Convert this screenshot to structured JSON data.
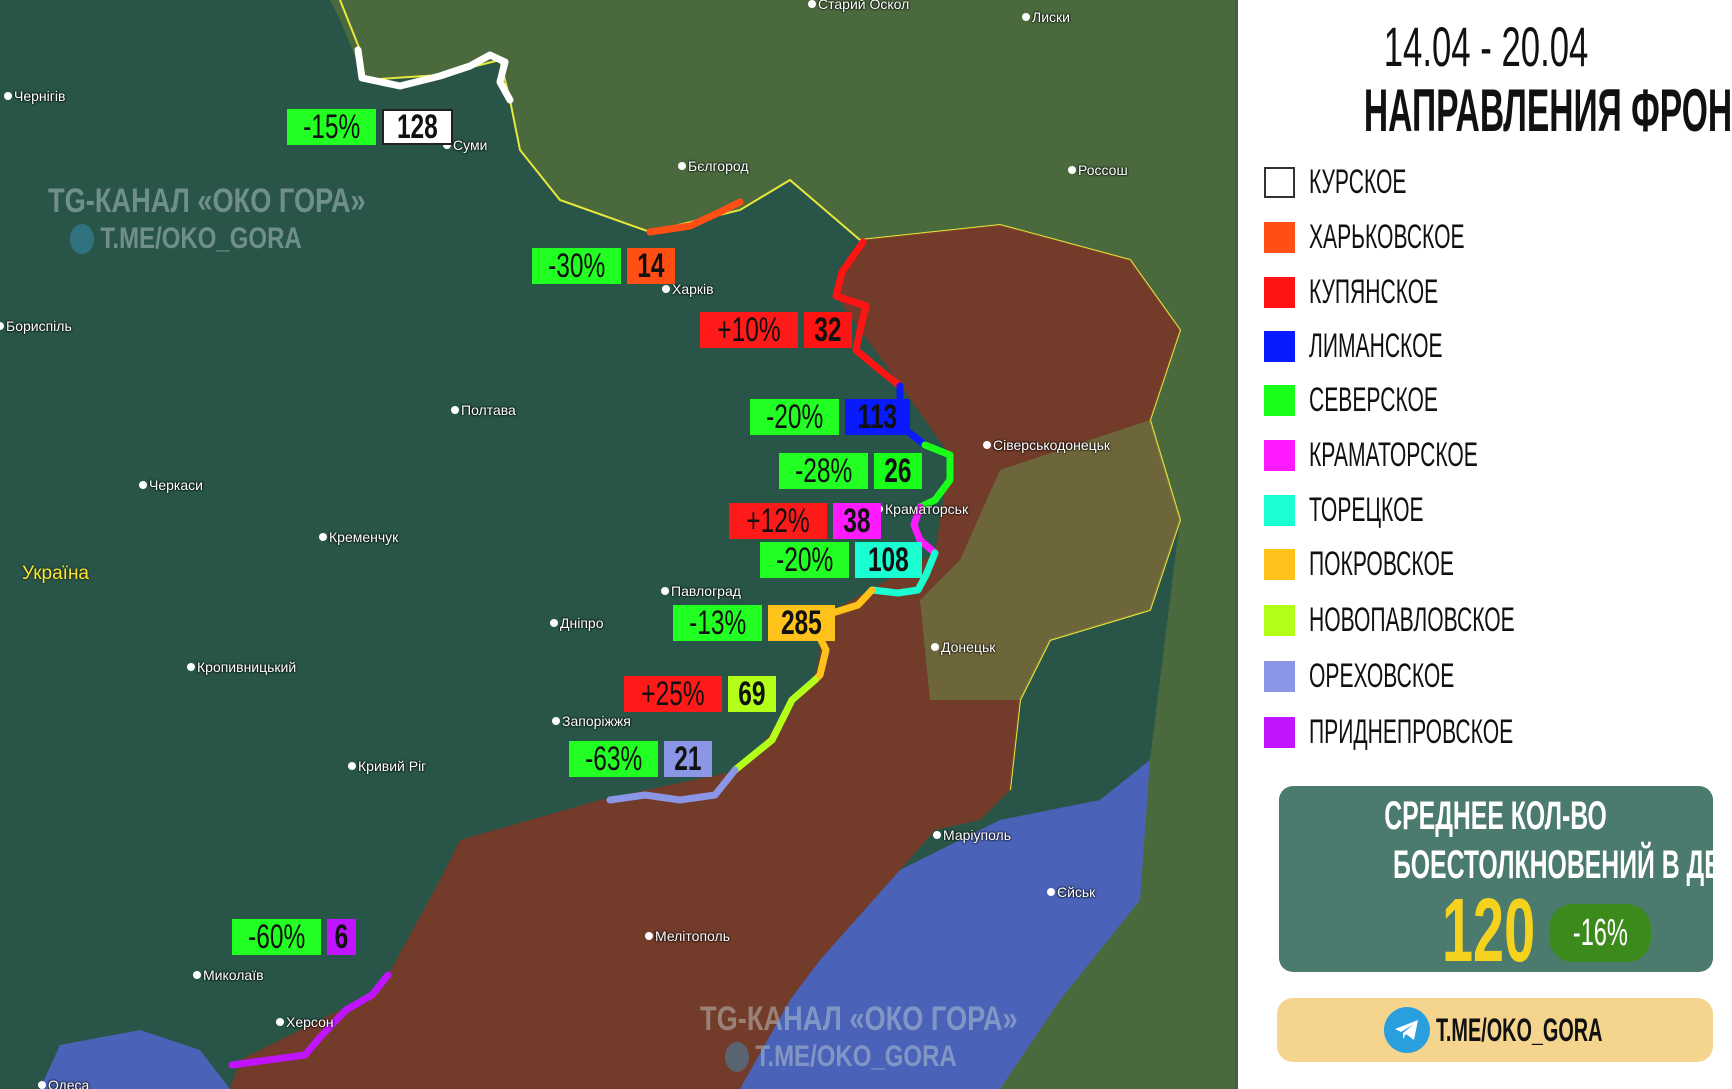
{
  "title": {
    "dates": "14.04 - 20.04",
    "heading": "НАПРАВЛЕНИЯ ФРОНТА:"
  },
  "legend": [
    {
      "label": "КУРСКОЕ",
      "color": "#ffffff"
    },
    {
      "label": "ХАРЬКОВСКОЕ",
      "color": "#ff4f14"
    },
    {
      "label": "КУПЯНСКОЕ",
      "color": "#ff1414"
    },
    {
      "label": "ЛИМАНСКОЕ",
      "color": "#0a1aff"
    },
    {
      "label": "СЕВЕРСКОЕ",
      "color": "#1aff1a"
    },
    {
      "label": "КРАМАТОРСКОЕ",
      "color": "#ff1aff"
    },
    {
      "label": "ТОРЕЦКОЕ",
      "color": "#1affd2"
    },
    {
      "label": "ПОКРОВСКОЕ",
      "color": "#ffc21a"
    },
    {
      "label": "НОВОПАВЛОВСКОЕ",
      "color": "#b4ff1a"
    },
    {
      "label": "ОРЕХОВСКОЕ",
      "color": "#8c96e6"
    },
    {
      "label": "ПРИДНЕПРОВСКОЕ",
      "color": "#c014ff"
    }
  ],
  "stats": {
    "line1": "СРЕДНЕЕ КОЛ-ВО",
    "line2": "БОЕСТОЛКНОВЕНИЙ В ДЕНЬ:",
    "value": "120",
    "change": "-16%"
  },
  "link": {
    "icon": "telegram-icon",
    "text": "T.ME/OKO_GORA"
  },
  "watermark": {
    "channel": "TG-КАНАЛ «ОКО ГОРА»",
    "link": "T.ME/OKO_GORA"
  },
  "map": {
    "country": "Україна",
    "cities": [
      "Чернігів",
      "Суми",
      "Бєлгород",
      "Старий Оскол",
      "Лиски",
      "Россош",
      "Харків",
      "Бориспіль",
      "Полтава",
      "Черкаси",
      "Кременчук",
      "Сіверськодонецьк",
      "Краматорськ",
      "Павлоград",
      "Дніпро",
      "Донецьк",
      "Кропивницький",
      "Запоріжжя",
      "Кривий Ріг",
      "Маріуполь",
      "Єйськ",
      "Мелітополь",
      "Миколаїв",
      "Херсон",
      "Одеса"
    ],
    "directions": [
      {
        "name": "КУРСКОЕ",
        "change": "-15%",
        "clashes": "128"
      },
      {
        "name": "ХАРЬКОВСКОЕ",
        "change": "-30%",
        "clashes": "14"
      },
      {
        "name": "КУПЯНСКОЕ",
        "change": "+10%",
        "clashes": "32"
      },
      {
        "name": "ЛИМАНСКОЕ",
        "change": "-20%",
        "clashes": "113"
      },
      {
        "name": "СЕВЕРСКОЕ",
        "change": "-28%",
        "clashes": "26"
      },
      {
        "name": "КРАМАТОРСКОЕ",
        "change": "+12%",
        "clashes": "38"
      },
      {
        "name": "ТОРЕЦКОЕ",
        "change": "-20%",
        "clashes": "108"
      },
      {
        "name": "ПОКРОВСКОЕ",
        "change": "-13%",
        "clashes": "285"
      },
      {
        "name": "НОВОПАВЛОВСКОЕ",
        "change": "+25%",
        "clashes": "69"
      },
      {
        "name": "ОРЕХОВСКОЕ",
        "change": "-63%",
        "clashes": "21"
      },
      {
        "name": "ПРИДНЕПРОВСКОЕ",
        "change": "-60%",
        "clashes": "6"
      }
    ],
    "colors": {
      "decrease": "#22ff22",
      "increase": "#ff1a1a",
      "occupied": "#7a3a28",
      "sea": "#4a62b8"
    }
  }
}
